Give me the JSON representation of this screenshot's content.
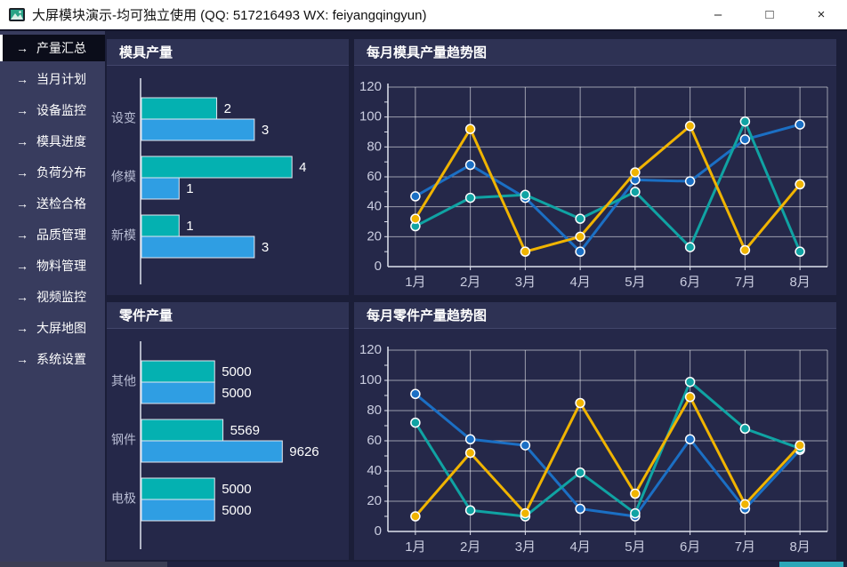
{
  "window": {
    "title": "大屏模块演示-均可独立使用 (QQ: 517216493  WX: feiyangqingyun)",
    "controls": {
      "minimize": "–",
      "maximize": "□",
      "close": "×"
    }
  },
  "icons": {
    "nav_arrow": "→"
  },
  "sidebar": {
    "items": [
      {
        "label": "产量汇总",
        "active": true
      },
      {
        "label": "当月计划",
        "active": false
      },
      {
        "label": "设备监控",
        "active": false
      },
      {
        "label": "模具进度",
        "active": false
      },
      {
        "label": "负荷分布",
        "active": false
      },
      {
        "label": "送检合格",
        "active": false
      },
      {
        "label": "品质管理",
        "active": false
      },
      {
        "label": "物料管理",
        "active": false
      },
      {
        "label": "视频监控",
        "active": false
      },
      {
        "label": "大屏地图",
        "active": false
      },
      {
        "label": "系统设置",
        "active": false
      }
    ]
  },
  "panels": [
    {
      "title": "模具产量"
    },
    {
      "title": "每月模具产量趋势图"
    },
    {
      "title": "零件产量"
    },
    {
      "title": "每月零件产量趋势图"
    }
  ],
  "colors": {
    "bar_teal": "#04b1b1",
    "bar_blue": "#2f9ee3",
    "bar_border": "#e4e7f0",
    "line_yellow": "#f0b400",
    "line_blue": "#1b6fc4",
    "line_teal": "#10a3a3",
    "marker_ring": "#ffffff",
    "grid": "rgba(255,255,255,0.55)",
    "axis": "#dfe2ee",
    "tick_label": "#c9ccdf",
    "category_label": "#b9bdd4",
    "value_label": "#ffffff"
  },
  "chart_data": [
    {
      "id": "mold-output-bar",
      "type": "bar",
      "orientation": "horizontal",
      "title": "模具产量",
      "categories": [
        "设变",
        "修模",
        "新模"
      ],
      "series": [
        {
          "name": "teal",
          "color": "#04b1b1",
          "values": [
            2,
            4,
            1
          ]
        },
        {
          "name": "blue",
          "color": "#2f9ee3",
          "values": [
            3,
            1,
            3
          ]
        }
      ],
      "xmax": 5.25,
      "grid": false
    },
    {
      "id": "mold-trend-line",
      "type": "line",
      "title": "每月模具产量趋势图",
      "x": [
        "1月",
        "2月",
        "3月",
        "4月",
        "5月",
        "6月",
        "7月",
        "8月"
      ],
      "ylim": [
        0,
        120
      ],
      "ytick": 20,
      "grid": true,
      "legend": "none",
      "series": [
        {
          "name": "blue",
          "color": "#1b6fc4",
          "values": [
            47,
            68,
            46,
            10,
            58,
            57,
            85,
            95
          ]
        },
        {
          "name": "teal",
          "color": "#10a3a3",
          "values": [
            27,
            46,
            48,
            32,
            50,
            13,
            97,
            10
          ]
        },
        {
          "name": "yellow",
          "color": "#f0b400",
          "values": [
            32,
            92,
            10,
            20,
            63,
            94,
            11,
            55
          ]
        }
      ]
    },
    {
      "id": "part-output-bar",
      "type": "bar",
      "orientation": "horizontal",
      "title": "零件产量",
      "categories": [
        "其他",
        "钢件",
        "电极"
      ],
      "series": [
        {
          "name": "teal",
          "color": "#04b1b1",
          "values": [
            5000,
            5569,
            5000
          ]
        },
        {
          "name": "blue",
          "color": "#2f9ee3",
          "values": [
            5000,
            9626,
            5000
          ]
        }
      ],
      "xmax": 13500,
      "grid": false
    },
    {
      "id": "part-trend-line",
      "type": "line",
      "title": "每月零件产量趋势图",
      "x": [
        "1月",
        "2月",
        "3月",
        "4月",
        "5月",
        "6月",
        "7月",
        "8月"
      ],
      "ylim": [
        0,
        120
      ],
      "ytick": 20,
      "grid": true,
      "legend": "none",
      "series": [
        {
          "name": "blue",
          "color": "#1b6fc4",
          "values": [
            91,
            61,
            57,
            15,
            10,
            61,
            15,
            54
          ]
        },
        {
          "name": "teal",
          "color": "#10a3a3",
          "values": [
            72,
            14,
            10,
            39,
            12,
            99,
            68,
            55
          ]
        },
        {
          "name": "yellow",
          "color": "#f0b400",
          "values": [
            10,
            52,
            12,
            85,
            25,
            89,
            18,
            57
          ]
        }
      ]
    }
  ]
}
